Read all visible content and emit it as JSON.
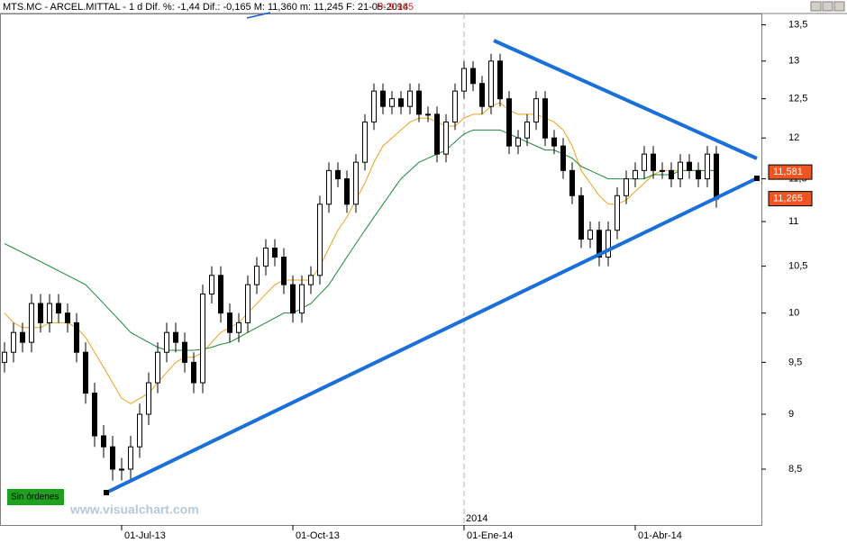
{
  "chart_data": {
    "type": "candlestick",
    "header": "MTS.MC - ARCEL.MITTAL - 1 d Dif. %: -1,44 Dif.: -0,165 M: 11,360 m: 11,245 F: 21-05-2014",
    "header_price": "P: 9.965",
    "status_label": "Sin órdenes",
    "watermark": "www.visualchart.com",
    "year_label": "2014",
    "log_scale": true,
    "ylim": [
      8.02,
      13.66
    ],
    "yticks": [
      {
        "value": 8.5,
        "label": "8,5"
      },
      9,
      {
        "value": 9.5,
        "label": "9,5"
      },
      10,
      {
        "value": 10.5,
        "label": "10,5"
      },
      11,
      {
        "value": 11.5,
        "label": "11,5"
      },
      12,
      {
        "value": 12.5,
        "label": "12,5"
      },
      13,
      {
        "value": 13.5,
        "label": "13,5"
      }
    ],
    "xticks": [
      {
        "value": 13,
        "label": "01-Jul-13"
      },
      {
        "value": 32,
        "label": "01-Oct-13"
      },
      {
        "value": 51,
        "label": "01-Ene-14"
      },
      {
        "value": 70,
        "label": "01-Abr-14"
      }
    ],
    "price_labels": [
      {
        "value": 11.581,
        "label": "11,581"
      },
      {
        "value": 11.265,
        "label": "11,265"
      }
    ],
    "candle_color": "#000000",
    "open": [
      9.5,
      9.6,
      9.8,
      9.7,
      10.1,
      9.9,
      10.1,
      10.0,
      9.9,
      9.6,
      9.2,
      8.8,
      8.7,
      8.5,
      8.5,
      8.7,
      9.0,
      9.3,
      9.6,
      9.8,
      9.7,
      9.5,
      9.3,
      10.2,
      10.4,
      10.0,
      9.8,
      9.9,
      10.3,
      10.5,
      10.7,
      10.6,
      10.3,
      10.0,
      10.3,
      10.4,
      11.2,
      11.6,
      11.5,
      11.2,
      11.7,
      12.2,
      12.6,
      12.4,
      12.5,
      12.4,
      12.6,
      12.3,
      12.3,
      11.8,
      12.2,
      12.6,
      12.9,
      12.7,
      12.4,
      13.0,
      12.5,
      11.9,
      12.0,
      12.2,
      12.5,
      12.0,
      11.9,
      11.6,
      11.3,
      10.8,
      10.9,
      10.6,
      10.9,
      11.3,
      11.5,
      11.6,
      11.8,
      11.6,
      11.6,
      11.5,
      11.7,
      11.6,
      11.5,
      11.8
    ],
    "high": [
      9.7,
      9.9,
      9.9,
      10.2,
      10.2,
      10.2,
      10.2,
      10.1,
      10.0,
      9.7,
      9.3,
      8.9,
      8.8,
      8.6,
      8.8,
      9.1,
      9.4,
      9.7,
      9.9,
      9.9,
      9.8,
      9.6,
      10.3,
      10.5,
      10.5,
      10.1,
      10.0,
      10.4,
      10.6,
      10.8,
      10.8,
      10.7,
      10.4,
      10.4,
      10.5,
      11.3,
      11.7,
      11.7,
      11.6,
      11.8,
      12.3,
      12.7,
      12.7,
      12.6,
      12.6,
      12.7,
      12.7,
      12.4,
      12.4,
      12.3,
      12.7,
      13.0,
      13.0,
      12.8,
      13.1,
      13.1,
      12.6,
      12.1,
      12.3,
      12.6,
      12.6,
      12.1,
      12.0,
      11.7,
      11.4,
      11.0,
      11.0,
      11.0,
      11.4,
      11.6,
      11.7,
      11.9,
      11.9,
      11.7,
      11.7,
      11.8,
      11.8,
      11.7,
      11.9,
      11.9
    ],
    "low": [
      9.4,
      9.5,
      9.6,
      9.6,
      9.8,
      9.8,
      9.9,
      9.8,
      9.5,
      9.1,
      8.7,
      8.6,
      8.4,
      8.4,
      8.4,
      8.6,
      8.9,
      9.2,
      9.5,
      9.6,
      9.4,
      9.2,
      9.2,
      10.1,
      9.9,
      9.7,
      9.7,
      9.8,
      10.2,
      10.4,
      10.5,
      10.2,
      9.9,
      9.9,
      10.2,
      10.3,
      11.1,
      11.4,
      11.1,
      11.1,
      11.6,
      12.1,
      12.3,
      12.3,
      12.3,
      12.3,
      12.2,
      12.2,
      11.7,
      11.7,
      12.1,
      12.5,
      12.6,
      12.3,
      12.3,
      12.4,
      11.8,
      11.8,
      11.9,
      12.1,
      11.9,
      11.8,
      11.5,
      11.2,
      10.7,
      10.7,
      10.5,
      10.5,
      10.8,
      11.2,
      11.4,
      11.5,
      11.5,
      11.5,
      11.4,
      11.4,
      11.5,
      11.4,
      11.4,
      11.16
    ],
    "close": [
      9.6,
      9.8,
      9.7,
      10.1,
      9.9,
      10.1,
      10.0,
      9.9,
      9.6,
      9.2,
      8.8,
      8.7,
      8.5,
      8.5,
      8.7,
      9.0,
      9.3,
      9.6,
      9.8,
      9.7,
      9.5,
      9.3,
      10.2,
      10.4,
      10.0,
      9.8,
      9.9,
      10.3,
      10.5,
      10.7,
      10.6,
      10.3,
      10.0,
      10.3,
      10.4,
      11.2,
      11.6,
      11.5,
      11.2,
      11.7,
      12.2,
      12.6,
      12.4,
      12.5,
      12.4,
      12.6,
      12.3,
      12.3,
      11.8,
      12.2,
      12.6,
      12.9,
      12.7,
      12.4,
      13.0,
      12.5,
      11.9,
      12.0,
      12.2,
      12.5,
      12.0,
      11.9,
      11.6,
      11.3,
      10.8,
      10.9,
      10.6,
      10.9,
      11.3,
      11.5,
      11.6,
      11.8,
      11.6,
      11.6,
      11.5,
      11.7,
      11.6,
      11.5,
      11.8,
      11.26
    ],
    "moving_averages": [
      {
        "color": "#f0a020",
        "values": [
          10.0,
          9.9,
          9.85,
          9.85,
          9.85,
          9.9,
          9.9,
          9.9,
          9.85,
          9.75,
          9.6,
          9.45,
          9.3,
          9.15,
          9.1,
          9.15,
          9.2,
          9.3,
          9.4,
          9.5,
          9.55,
          9.55,
          9.6,
          9.7,
          9.8,
          9.85,
          9.9,
          10.0,
          10.1,
          10.2,
          10.3,
          10.35,
          10.35,
          10.35,
          10.35,
          10.5,
          10.7,
          10.9,
          11.05,
          11.25,
          11.45,
          11.7,
          11.9,
          12.0,
          12.1,
          12.2,
          12.25,
          12.25,
          12.2,
          12.15,
          12.15,
          12.25,
          12.3,
          12.3,
          12.4,
          12.45,
          12.35,
          12.3,
          12.3,
          12.3,
          12.25,
          12.2,
          12.1,
          11.9,
          11.6,
          11.45,
          11.3,
          11.2,
          11.2,
          11.25,
          11.35,
          11.45,
          11.55,
          11.6,
          11.6,
          11.6,
          11.6,
          11.6,
          11.6,
          11.6
        ]
      },
      {
        "color": "#1a8a3a",
        "values": [
          10.75,
          10.7,
          10.65,
          10.6,
          10.55,
          10.5,
          10.45,
          10.4,
          10.35,
          10.3,
          10.2,
          10.1,
          10.0,
          9.9,
          9.8,
          9.75,
          9.7,
          9.65,
          9.62,
          9.62,
          9.62,
          9.62,
          9.63,
          9.65,
          9.68,
          9.7,
          9.75,
          9.8,
          9.85,
          9.9,
          9.95,
          10.0,
          10.0,
          10.05,
          10.1,
          10.2,
          10.3,
          10.45,
          10.6,
          10.75,
          10.9,
          11.05,
          11.2,
          11.35,
          11.5,
          11.6,
          11.7,
          11.75,
          11.8,
          11.85,
          11.95,
          12.05,
          12.1,
          12.1,
          12.1,
          12.1,
          12.05,
          12.0,
          11.95,
          11.9,
          11.85,
          11.85,
          11.8,
          11.75,
          11.65,
          11.6,
          11.55,
          11.5,
          11.5,
          11.5,
          11.5,
          11.5,
          11.55,
          11.55,
          11.55,
          11.6,
          11.6,
          11.6,
          11.6,
          11.6
        ]
      }
    ]
  }
}
